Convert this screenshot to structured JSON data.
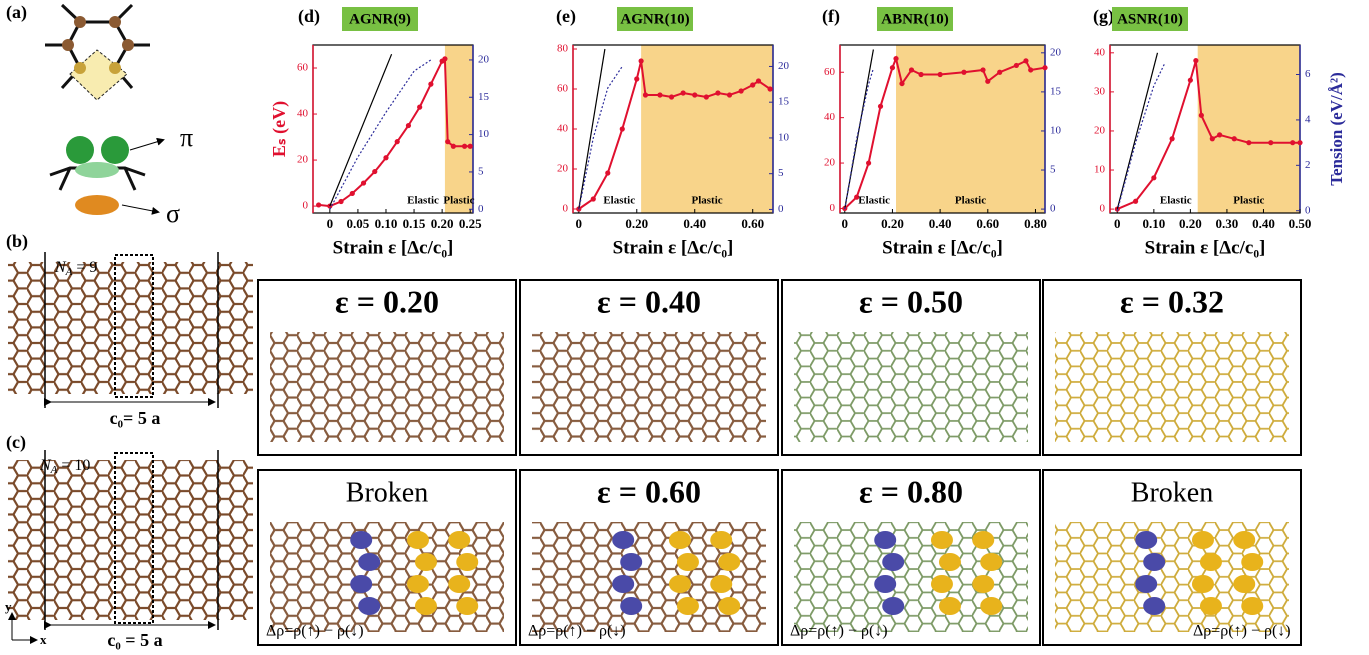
{
  "chart_data": [
    {
      "type": "line",
      "panel": "(d)",
      "title": "AGNR(9)",
      "x_label": "Strain ε [Δc/c₀]",
      "y_label": "Eₛ (eV)",
      "elastic_label": "Elastic",
      "plastic_label": "Plastic",
      "shaded_from": 0.205,
      "shade_color": "#f8d48a",
      "xlim": [
        -0.03,
        0.255
      ],
      "xticks": [
        0,
        0.05,
        {
          "value": 0.1,
          "label": "0.10"
        },
        0.15,
        {
          "value": 0.2,
          "label": "0.20"
        },
        0.25
      ],
      "ylim": [
        -3,
        70
      ],
      "yticks": [
        0,
        20,
        40,
        60
      ],
      "y2lim": [
        -0.5,
        22
      ],
      "y2ticks": [
        0,
        5,
        10,
        15,
        20
      ],
      "series": [
        {
          "color": "#e0102f",
          "markers": true,
          "x": [
            -0.02,
            0,
            0.02,
            0.04,
            0.06,
            0.08,
            0.1,
            0.12,
            0.14,
            0.16,
            0.18,
            0.2,
            0.205,
            0.21,
            0.22,
            0.24,
            0.25
          ],
          "values": [
            0.5,
            0,
            2,
            5.5,
            10,
            15,
            21,
            28,
            35,
            43,
            53,
            63,
            64,
            28,
            26,
            26,
            26
          ]
        },
        {
          "color": "#000000",
          "x": [
            0,
            0.11
          ],
          "values": [
            0,
            66
          ]
        },
        {
          "color": "#2b2b9a",
          "dashed": true,
          "axis": "y2",
          "x": [
            0,
            0.05,
            0.1,
            0.15,
            0.18
          ],
          "values": [
            0,
            7,
            13,
            18.5,
            20
          ]
        }
      ]
    },
    {
      "type": "line",
      "panel": "(e)",
      "title": "AGNR(10)",
      "x_label": "Strain ε [Δc/c₀]",
      "elastic_label": "Elastic",
      "plastic_label": "Plastic",
      "shaded_from": 0.215,
      "shade_color": "#f8d48a",
      "xlim": [
        -0.02,
        0.67
      ],
      "xticks": [
        0,
        {
          "value": 0.2,
          "label": "0.20"
        },
        {
          "value": 0.4,
          "label": "0.40"
        },
        {
          "value": 0.6,
          "label": "0.60"
        }
      ],
      "ylim": [
        -2,
        82
      ],
      "yticks": [
        0,
        20,
        40,
        60,
        80
      ],
      "y2lim": [
        -0.5,
        23
      ],
      "y2ticks": [
        0,
        5,
        10,
        15,
        20
      ],
      "series": [
        {
          "color": "#e0102f",
          "markers": true,
          "x": [
            0,
            0.05,
            0.1,
            0.15,
            0.2,
            0.215,
            0.23,
            0.28,
            0.32,
            0.36,
            0.4,
            0.44,
            0.48,
            0.52,
            0.56,
            0.6,
            0.62,
            0.66
          ],
          "values": [
            0,
            5,
            18,
            40,
            65,
            74,
            57,
            57,
            56,
            58,
            57,
            56,
            58,
            57,
            59,
            62,
            64,
            60
          ]
        },
        {
          "color": "#000000",
          "x": [
            0,
            0.09
          ],
          "values": [
            0,
            80
          ]
        },
        {
          "color": "#2b2b9a",
          "dashed": true,
          "axis": "y2",
          "x": [
            0,
            0.05,
            0.1,
            0.15
          ],
          "values": [
            0,
            10,
            17,
            20
          ]
        }
      ]
    },
    {
      "type": "line",
      "panel": "(f)",
      "title": "ABNR(10)",
      "x_label": "Strain ε [Δc/c₀]",
      "elastic_label": "Elastic",
      "plastic_label": "Plastic",
      "shaded_from": 0.215,
      "shade_color": "#f8d48a",
      "xlim": [
        -0.02,
        0.84
      ],
      "xticks": [
        0,
        {
          "value": 0.2,
          "label": "0.20"
        },
        {
          "value": 0.4,
          "label": "0.40"
        },
        {
          "value": 0.6,
          "label": "0.60"
        },
        {
          "value": 0.8,
          "label": "0.80"
        }
      ],
      "ylim": [
        -2,
        72
      ],
      "yticks": [
        0,
        20,
        40,
        60
      ],
      "y2lim": [
        -0.5,
        21
      ],
      "y2ticks": [
        0,
        5,
        10,
        15,
        20
      ],
      "series": [
        {
          "color": "#e0102f",
          "markers": true,
          "x": [
            0,
            0.05,
            0.1,
            0.15,
            0.2,
            0.215,
            0.24,
            0.28,
            0.32,
            0.4,
            0.5,
            0.58,
            0.6,
            0.65,
            0.72,
            0.76,
            0.78,
            0.84
          ],
          "values": [
            0,
            5,
            20,
            45,
            62,
            66,
            55,
            61,
            59,
            59,
            60,
            61,
            56,
            60,
            63,
            65,
            61,
            62
          ]
        },
        {
          "color": "#000000",
          "x": [
            0,
            0.12
          ],
          "values": [
            0,
            70
          ]
        },
        {
          "color": "#2b2b9a",
          "dashed": true,
          "axis": "y2",
          "x": [
            0,
            0.05,
            0.1,
            0.12
          ],
          "values": [
            0,
            9,
            16,
            18
          ]
        }
      ]
    },
    {
      "type": "line",
      "panel": "(g)",
      "title": "ASNR(10)",
      "x_label": "Strain ε [Δc/c₀]",
      "y2_label": "Tension (eV/Å²)",
      "elastic_label": "Elastic",
      "plastic_label": "Plastic",
      "shaded_from": 0.22,
      "shade_color": "#f8d48a",
      "xlim": [
        -0.02,
        0.5
      ],
      "xticks": [
        0,
        {
          "value": 0.1,
          "label": "0.10"
        },
        {
          "value": 0.2,
          "label": "0.20"
        },
        {
          "value": 0.3,
          "label": "0.30"
        },
        {
          "value": 0.4,
          "label": "0.40"
        },
        {
          "value": 0.5,
          "label": "0.50"
        }
      ],
      "ylim": [
        -1,
        42
      ],
      "yticks": [
        0,
        10,
        20,
        30,
        40
      ],
      "y2lim": [
        -0.1,
        7.3
      ],
      "y2ticks": [
        0,
        2,
        4,
        6
      ],
      "series": [
        {
          "color": "#e0102f",
          "markers": true,
          "x": [
            0,
            0.05,
            0.1,
            0.15,
            0.2,
            0.215,
            0.23,
            0.26,
            0.28,
            0.32,
            0.36,
            0.42,
            0.48,
            0.5
          ],
          "values": [
            0,
            2,
            8,
            18,
            33,
            38,
            24,
            18,
            19,
            18,
            17,
            17,
            17,
            17
          ]
        },
        {
          "color": "#000000",
          "x": [
            0,
            0.11
          ],
          "values": [
            0,
            40
          ]
        },
        {
          "color": "#2b2b9a",
          "dashed": true,
          "axis": "y2",
          "x": [
            0,
            0.05,
            0.1,
            0.13
          ],
          "values": [
            0,
            3,
            5.5,
            6.5
          ]
        }
      ]
    }
  ],
  "structure_panels": [
    {
      "top": "ε = 0.20",
      "bottom": "Broken",
      "caption": "Δρ=ρ(↑) − ρ(↓)"
    },
    {
      "top": "ε = 0.40",
      "bottom": "ε = 0.60",
      "caption": "Δρ=ρ(↑) − ρ(↓)"
    },
    {
      "top": "ε = 0.50",
      "bottom": "ε = 0.80",
      "caption": "Δρ=ρ(↑) − ρ(↓)"
    },
    {
      "top": "ε = 0.32",
      "bottom": "Broken",
      "caption": "Δρ=ρ(↑) − ρ(↓)"
    }
  ],
  "left_panels": {
    "a": {
      "label": "(a)",
      "pi": "π",
      "sigma": "σ"
    },
    "b": {
      "label": "(b)",
      "n_symbol": "N",
      "n_sub": "A",
      "n_rest": " = 9",
      "width": "c₀= 5 a"
    },
    "c": {
      "label": "(c)",
      "n_symbol": "N",
      "n_sub": "A",
      "n_rest": " = 10",
      "width": "c₀ = 5 a"
    },
    "axes": {
      "y": "y",
      "x": "x"
    }
  }
}
